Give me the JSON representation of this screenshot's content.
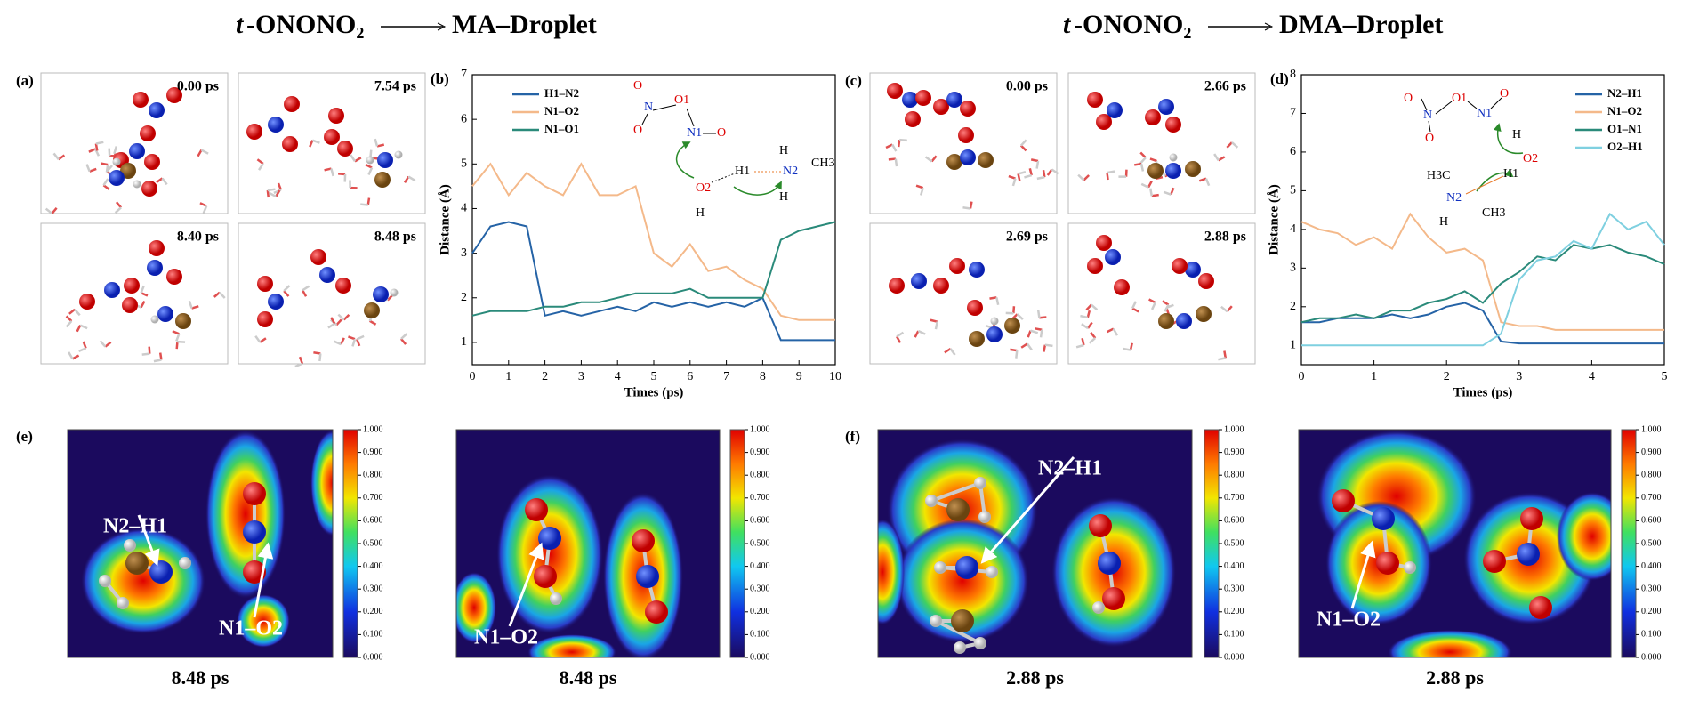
{
  "titles": [
    {
      "italic": "t",
      "formula": "-ONONO₂",
      "target": "MA–Droplet"
    },
    {
      "italic": "t",
      "formula": "-ONONO₂",
      "target": "DMA–Droplet"
    }
  ],
  "panel_labels": [
    "(a)",
    "(b)",
    "(c)",
    "(d)",
    "(e)",
    "(f)"
  ],
  "snapshots": {
    "a": [
      "0.00 ps",
      "7.54 ps",
      "8.40 ps",
      "8.48 ps"
    ],
    "c": [
      "0.00 ps",
      "2.66 ps",
      "2.69 ps",
      "2.88 ps"
    ]
  },
  "chart_data": [
    {
      "type": "line",
      "xlabel": "Times (ps)",
      "ylabel": "Distance (Å)",
      "x": [
        0,
        0.5,
        1,
        1.5,
        2,
        2.5,
        3,
        3.5,
        4,
        4.5,
        5,
        5.5,
        6,
        6.5,
        7,
        7.5,
        8,
        8.5,
        9,
        9.5,
        10
      ],
      "xlim": [
        0,
        10
      ],
      "xticks": [
        0,
        1,
        2,
        3,
        4,
        5,
        6,
        7,
        8,
        9,
        10
      ],
      "ylim": [
        0.5,
        7
      ],
      "yticks": [
        1,
        2,
        3,
        4,
        5,
        6,
        7
      ],
      "legend": "upper left",
      "series": [
        {
          "name": "H1–N2",
          "color": "#2563a6",
          "values": [
            3.0,
            3.6,
            3.7,
            3.6,
            1.6,
            1.7,
            1.6,
            1.7,
            1.8,
            1.7,
            1.9,
            1.8,
            1.9,
            1.8,
            1.9,
            1.8,
            2.0,
            1.05,
            1.05,
            1.05,
            1.05
          ]
        },
        {
          "name": "N1–O2",
          "color": "#f4b98a",
          "values": [
            4.5,
            5.0,
            4.3,
            4.8,
            4.5,
            4.3,
            5.0,
            4.3,
            4.3,
            4.5,
            3.0,
            2.7,
            3.2,
            2.6,
            2.7,
            2.4,
            2.2,
            1.6,
            1.5,
            1.5,
            1.5
          ]
        },
        {
          "name": "N1–O1",
          "color": "#2a8a7a",
          "values": [
            1.6,
            1.7,
            1.7,
            1.7,
            1.8,
            1.8,
            1.9,
            1.9,
            2.0,
            2.1,
            2.1,
            2.1,
            2.2,
            2.0,
            2.0,
            2.0,
            2.0,
            3.3,
            3.5,
            3.6,
            3.7
          ]
        }
      ]
    },
    {
      "type": "line",
      "xlabel": "Times (ps)",
      "ylabel": "Distance (Å)",
      "x": [
        0,
        0.25,
        0.5,
        0.75,
        1,
        1.25,
        1.5,
        1.75,
        2,
        2.25,
        2.5,
        2.75,
        3,
        3.25,
        3.5,
        3.75,
        4,
        4.25,
        4.5,
        4.75,
        5
      ],
      "xlim": [
        0,
        5
      ],
      "xticks": [
        0,
        1,
        2,
        3,
        4,
        5
      ],
      "ylim": [
        0.5,
        8
      ],
      "yticks": [
        1,
        2,
        3,
        4,
        5,
        6,
        7,
        8
      ],
      "legend": "upper right",
      "series": [
        {
          "name": "N2–H1",
          "color": "#2563a6",
          "values": [
            1.6,
            1.6,
            1.7,
            1.7,
            1.7,
            1.8,
            1.7,
            1.8,
            2.0,
            2.1,
            1.9,
            1.1,
            1.05,
            1.05,
            1.05,
            1.05,
            1.05,
            1.05,
            1.05,
            1.05,
            1.05
          ]
        },
        {
          "name": "N1–O2",
          "color": "#f4b98a",
          "values": [
            4.2,
            4.0,
            3.9,
            3.6,
            3.8,
            3.5,
            4.4,
            3.8,
            3.4,
            3.5,
            3.2,
            1.6,
            1.5,
            1.5,
            1.4,
            1.4,
            1.4,
            1.4,
            1.4,
            1.4,
            1.4
          ]
        },
        {
          "name": "O1–N1",
          "color": "#2a8a7a",
          "values": [
            1.6,
            1.7,
            1.7,
            1.8,
            1.7,
            1.9,
            1.9,
            2.1,
            2.2,
            2.4,
            2.1,
            2.6,
            2.9,
            3.3,
            3.2,
            3.6,
            3.5,
            3.6,
            3.4,
            3.3,
            3.1
          ]
        },
        {
          "name": "O2–H1",
          "color": "#7fd0e0",
          "values": [
            1.0,
            1.0,
            1.0,
            1.0,
            1.0,
            1.0,
            1.0,
            1.0,
            1.0,
            1.0,
            1.0,
            1.3,
            2.7,
            3.2,
            3.3,
            3.7,
            3.5,
            4.4,
            4.0,
            4.2,
            3.6
          ]
        }
      ]
    }
  ],
  "insets": {
    "b": [
      "O",
      "N",
      "O1",
      "N1",
      "O",
      "O",
      "H1",
      "N2",
      "CH3",
      "O2",
      "H",
      "H",
      "H"
    ],
    "d": [
      "O",
      "O1",
      "N1",
      "O",
      "N",
      "O",
      "H",
      "O2",
      "H1",
      "H3C",
      "N2",
      "H",
      "CH3"
    ]
  },
  "elf": {
    "colorbar_ticks": [
      {
        "value": 0,
        "label": "0.000"
      },
      {
        "value": 0.1,
        "label": "0.100"
      },
      {
        "value": 0.2,
        "label": "0.200"
      },
      {
        "value": 0.3,
        "label": "0.300"
      },
      {
        "value": 0.4,
        "label": "0.400"
      },
      {
        "value": 0.5,
        "label": "0.500"
      },
      {
        "value": 0.6,
        "label": "0.600"
      },
      {
        "value": 0.7,
        "label": "0.700"
      },
      {
        "value": 0.8,
        "label": "0.800"
      },
      {
        "value": 0.9,
        "label": "0.900"
      },
      {
        "value": 1,
        "label": "1.000"
      }
    ],
    "maps": [
      {
        "caption": "8.48 ps",
        "annotations": [
          "N2–H1",
          "N1–O2"
        ]
      },
      {
        "caption": "8.48 ps",
        "annotations": [
          "N1–O2"
        ]
      },
      {
        "caption": "2.88 ps",
        "annotations": [
          "N2–H1"
        ]
      },
      {
        "caption": "2.88 ps",
        "annotations": [
          "N1–O2"
        ]
      }
    ]
  }
}
